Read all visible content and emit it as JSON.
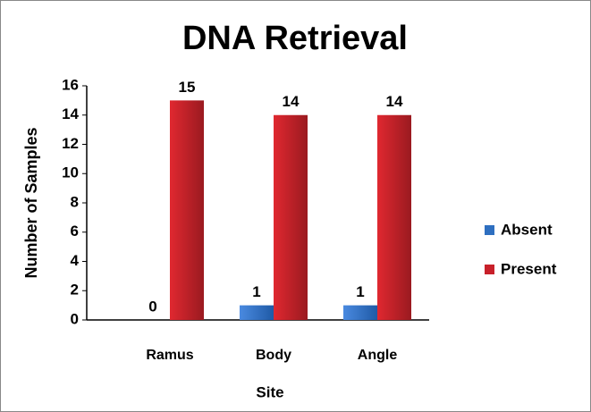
{
  "chart_data": {
    "type": "bar",
    "title": "DNA Retrieval",
    "x_label": "Site",
    "y_label": "Number of Samples",
    "categories": [
      "Ramus",
      "Body",
      "Angle"
    ],
    "series": [
      {
        "name": "Absent",
        "color": "#2e6fc0",
        "values": [
          0,
          1,
          1
        ]
      },
      {
        "name": "Present",
        "color": "#c8202a",
        "values": [
          15,
          14,
          14
        ]
      }
    ],
    "ylim": [
      0,
      16
    ],
    "yticks": [
      0,
      2,
      4,
      6,
      8,
      10,
      12,
      14,
      16
    ],
    "grid": false,
    "legend": "right"
  }
}
